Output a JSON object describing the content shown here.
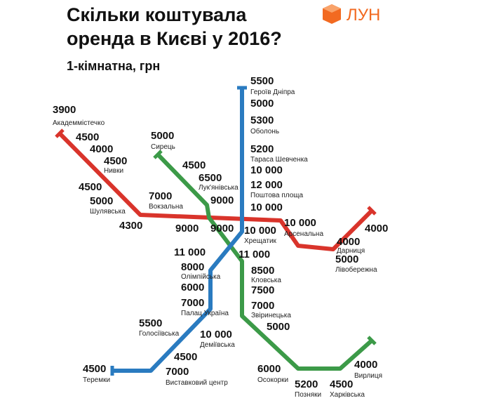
{
  "header": {
    "title": [
      "Скільки коштувала",
      "оренда в Києві у 2016?"
    ],
    "subtitle": "1-кімнатна, грн"
  },
  "logo": {
    "text": "ЛУН"
  },
  "lines": [
    {
      "color": "#d9342b",
      "stations": [
        {
          "price": "3900",
          "name": "Академмістечко"
        },
        {
          "price": "4500"
        },
        {
          "price": "4000"
        },
        {
          "price": "4500",
          "name": "Нивки"
        },
        {
          "price": "4500"
        },
        {
          "price": "5000",
          "name": "Шулявська"
        },
        {
          "price": "4300"
        },
        {
          "price": "7000",
          "name": "Вокзальна"
        },
        {
          "price": "9000"
        },
        {
          "price": "9000"
        },
        {
          "price": "10 000",
          "name": "Арсенальна"
        },
        {
          "price": "4000"
        },
        {
          "price": "4000",
          "name": "Дарниця"
        },
        {
          "price": "5000",
          "name": "Лівобережна"
        }
      ]
    },
    {
      "color": "#3c9a48",
      "stations": [
        {
          "price": "5000",
          "name": "Сирець"
        },
        {
          "price": "4500"
        },
        {
          "price": "6500",
          "name": "Лук'янівська"
        },
        {
          "price": "9000"
        },
        {
          "price": "11 000"
        },
        {
          "price": "8500",
          "name": "Кловська"
        },
        {
          "price": "7500"
        },
        {
          "price": "7000",
          "name": "Звіринецька"
        },
        {
          "price": "5000"
        },
        {
          "price": "6000",
          "name": "Осокорки"
        },
        {
          "price": "5200",
          "name": "Позняки"
        },
        {
          "price": "4500",
          "name": "Харківська"
        },
        {
          "price": "4000",
          "name": "Вирлиця"
        }
      ]
    },
    {
      "color": "#2a7bc0",
      "stations": [
        {
          "price": "5500",
          "name": "Героїв Дніпра"
        },
        {
          "price": "5000"
        },
        {
          "price": "5300",
          "name": "Оболонь"
        },
        {
          "price": "5200",
          "name": "Тараса Шевченка"
        },
        {
          "price": "10 000"
        },
        {
          "price": "12 000",
          "name": "Поштова площа"
        },
        {
          "price": "10 000"
        },
        {
          "price": "10 000",
          "name": "Хрещатик"
        },
        {
          "price": "11 000"
        },
        {
          "price": "8000",
          "name": "Олімпійська"
        },
        {
          "price": "6000"
        },
        {
          "price": "7000",
          "name": "Палац Україна"
        },
        {
          "price": "5500",
          "name": "Голосіївська"
        },
        {
          "price": "10 000",
          "name": "Деміївська"
        },
        {
          "price": "4500"
        },
        {
          "price": "7000",
          "name": "Виставковий центр"
        },
        {
          "price": "4500",
          "name": "Теремки"
        }
      ]
    }
  ]
}
